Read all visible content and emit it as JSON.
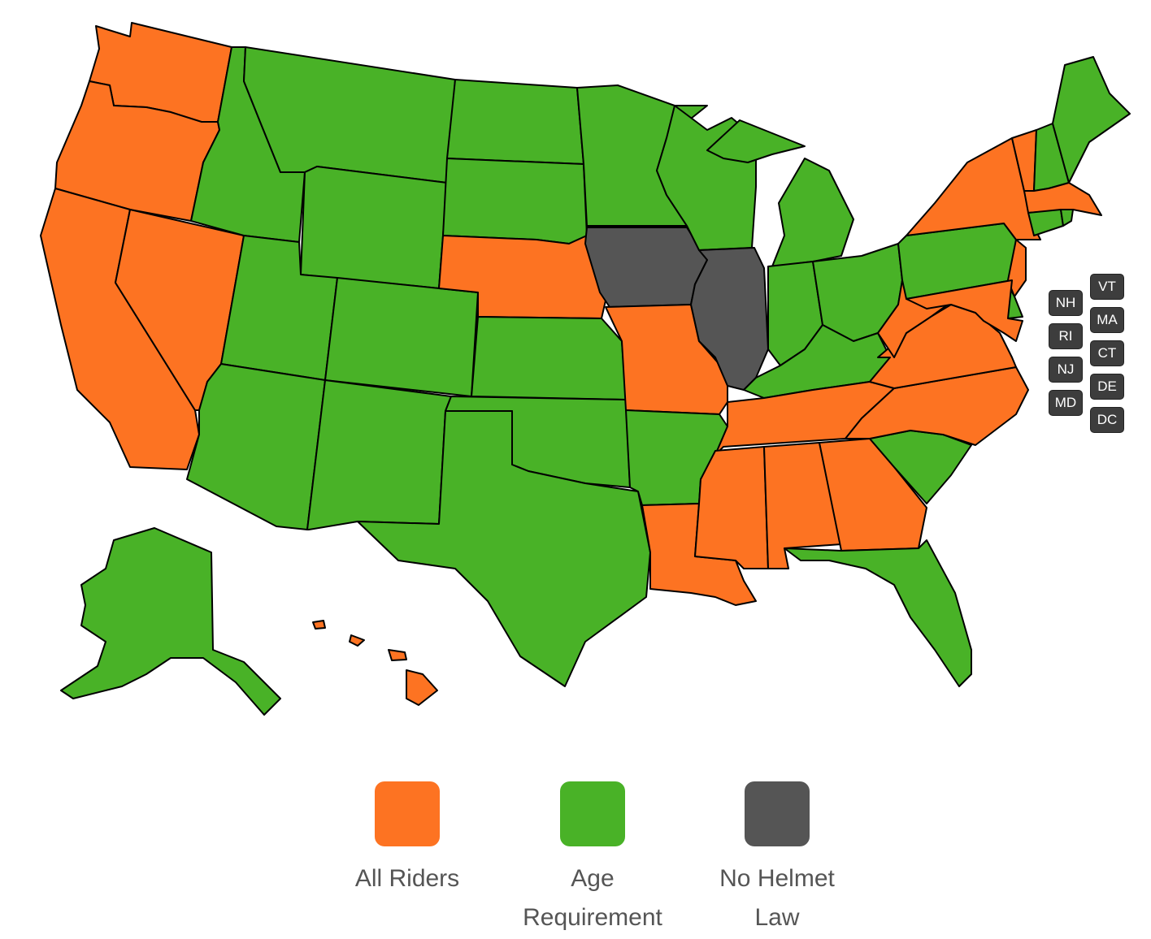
{
  "colors": {
    "all_riders": "#fd7322",
    "age_requirement": "#49b227",
    "no_helmet_law": "#555555",
    "border": "#000000"
  },
  "map": {
    "states": {
      "WA": "all_riders",
      "OR": "all_riders",
      "CA": "all_riders",
      "NV": "all_riders",
      "ID": "age_requirement",
      "MT": "age_requirement",
      "WY": "age_requirement",
      "UT": "age_requirement",
      "AZ": "age_requirement",
      "CO": "age_requirement",
      "NM": "age_requirement",
      "ND": "age_requirement",
      "SD": "age_requirement",
      "NE": "all_riders",
      "KS": "age_requirement",
      "OK": "age_requirement",
      "TX": "age_requirement",
      "MN": "age_requirement",
      "IA": "no_helmet_law",
      "MO": "all_riders",
      "AR": "age_requirement",
      "LA": "all_riders",
      "WI": "age_requirement",
      "IL": "no_helmet_law",
      "MI": "age_requirement",
      "IN": "age_requirement",
      "OH": "age_requirement",
      "KY": "age_requirement",
      "TN": "all_riders",
      "MS": "all_riders",
      "AL": "all_riders",
      "GA": "all_riders",
      "FL": "age_requirement",
      "SC": "age_requirement",
      "NC": "all_riders",
      "VA": "all_riders",
      "WV": "all_riders",
      "PA": "age_requirement",
      "NY": "all_riders",
      "VT": "all_riders",
      "NH": "age_requirement",
      "ME": "age_requirement",
      "MA": "all_riders",
      "RI": "age_requirement",
      "CT": "age_requirement",
      "NJ": "all_riders",
      "DE": "age_requirement",
      "MD": "all_riders",
      "DC": "all_riders",
      "AK": "age_requirement",
      "HI": "all_riders"
    },
    "small_state_buttons": [
      "NH",
      "VT",
      "RI",
      "MA",
      "NJ",
      "CT",
      "MD",
      "DE",
      "DC"
    ]
  },
  "legend": {
    "items": [
      {
        "key": "all_riders",
        "label": "All Riders"
      },
      {
        "key": "age_requirement",
        "label": "Age Requirement"
      },
      {
        "key": "no_helmet_law",
        "label": "No Helmet Law"
      }
    ]
  }
}
